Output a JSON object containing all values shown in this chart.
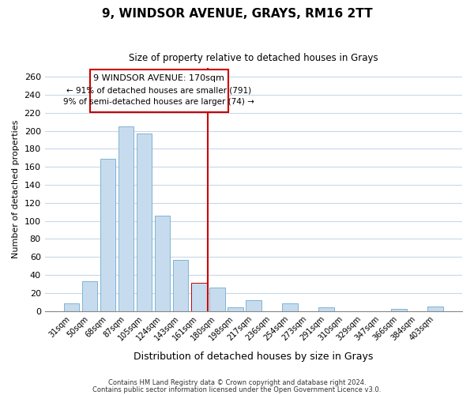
{
  "title": "9, WINDSOR AVENUE, GRAYS, RM16 2TT",
  "subtitle": "Size of property relative to detached houses in Grays",
  "xlabel": "Distribution of detached houses by size in Grays",
  "ylabel": "Number of detached properties",
  "categories": [
    "31sqm",
    "50sqm",
    "68sqm",
    "87sqm",
    "105sqm",
    "124sqm",
    "143sqm",
    "161sqm",
    "180sqm",
    "198sqm",
    "217sqm",
    "236sqm",
    "254sqm",
    "273sqm",
    "291sqm",
    "310sqm",
    "329sqm",
    "347sqm",
    "366sqm",
    "384sqm",
    "403sqm"
  ],
  "values": [
    8,
    33,
    169,
    205,
    197,
    106,
    57,
    31,
    26,
    4,
    12,
    0,
    8,
    0,
    4,
    0,
    0,
    0,
    2,
    0,
    5
  ],
  "bar_color": "#c6dcee",
  "bar_edge_color": "#7fb3d3",
  "highlight_bar_color": "#c6dcee",
  "highlight_bar_edge_color": "#c00000",
  "highlight_index": 7,
  "vline_x": 7.5,
  "vline_color": "#cc0000",
  "ylim": [
    0,
    270
  ],
  "yticks": [
    0,
    20,
    40,
    60,
    80,
    100,
    120,
    140,
    160,
    180,
    200,
    220,
    240,
    260
  ],
  "annotation_title": "9 WINDSOR AVENUE: 170sqm",
  "annotation_line1": "← 91% of detached houses are smaller (791)",
  "annotation_line2": "9% of semi-detached houses are larger (74) →",
  "annotation_box_color": "#ffffff",
  "annotation_box_edge_color": "#cc0000",
  "footer_line1": "Contains HM Land Registry data © Crown copyright and database right 2024.",
  "footer_line2": "Contains public sector information licensed under the Open Government Licence v3.0.",
  "background_color": "#ffffff",
  "grid_color": "#c8d8e8"
}
